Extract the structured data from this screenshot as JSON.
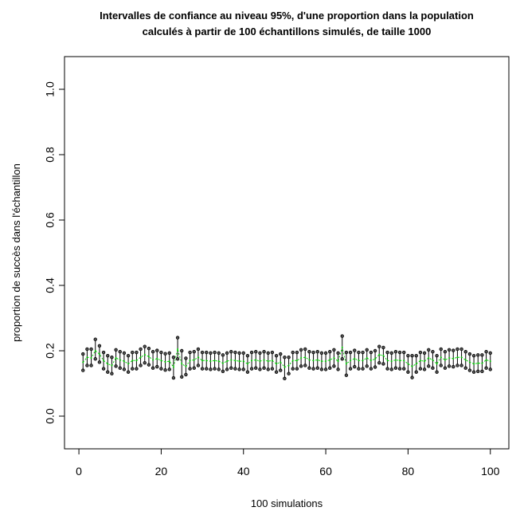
{
  "chart_data": {
    "type": "scatter",
    "title": "Intervalles de confiance  au niveau 95%, d'une proportion dans la population",
    "subtitle": "calculés à partir de 100 échantillons simulés, de taille 1000",
    "xlabel": "100 simulations",
    "ylabel": "proportion de succès dans l'échantillon",
    "xlim": [
      0,
      100
    ],
    "ylim": [
      -0.1,
      1.1
    ],
    "x_ticks": [
      "0",
      "20",
      "40",
      "60",
      "80",
      "100"
    ],
    "y_ticks": [
      "0.0",
      "0.2",
      "0.4",
      "0.6",
      "0.8",
      "1.0"
    ],
    "grid": false,
    "colors": {
      "interval": "#000000",
      "estimate": "#00cc00"
    },
    "x": [
      1,
      2,
      3,
      4,
      5,
      6,
      7,
      8,
      9,
      10,
      11,
      12,
      13,
      14,
      15,
      16,
      17,
      18,
      19,
      20,
      21,
      22,
      23,
      24,
      25,
      26,
      27,
      28,
      29,
      30,
      31,
      32,
      33,
      34,
      35,
      36,
      37,
      38,
      39,
      40,
      41,
      42,
      43,
      44,
      45,
      46,
      47,
      48,
      49,
      50,
      51,
      52,
      53,
      54,
      55,
      56,
      57,
      58,
      59,
      60,
      61,
      62,
      63,
      64,
      65,
      66,
      67,
      68,
      69,
      70,
      71,
      72,
      73,
      74,
      75,
      76,
      77,
      78,
      79,
      80,
      81,
      82,
      83,
      84,
      85,
      86,
      87,
      88,
      89,
      90,
      91,
      92,
      93,
      94,
      95,
      96,
      97,
      98,
      99,
      100
    ],
    "series": [
      {
        "name": "estimate",
        "values": [
          0.165,
          0.18,
          0.178,
          0.2,
          0.19,
          0.17,
          0.16,
          0.155,
          0.178,
          0.172,
          0.168,
          0.16,
          0.17,
          0.17,
          0.18,
          0.188,
          0.182,
          0.172,
          0.176,
          0.17,
          0.166,
          0.168,
          0.15,
          0.205,
          0.16,
          0.152,
          0.17,
          0.172,
          0.18,
          0.17,
          0.17,
          0.168,
          0.17,
          0.168,
          0.162,
          0.168,
          0.172,
          0.17,
          0.168,
          0.168,
          0.16,
          0.17,
          0.172,
          0.168,
          0.172,
          0.168,
          0.17,
          0.16,
          0.165,
          0.15,
          0.155,
          0.17,
          0.17,
          0.178,
          0.18,
          0.172,
          0.17,
          0.172,
          0.168,
          0.168,
          0.172,
          0.178,
          0.168,
          0.21,
          0.16,
          0.17,
          0.176,
          0.17,
          0.17,
          0.178,
          0.17,
          0.175,
          0.188,
          0.185,
          0.17,
          0.168,
          0.172,
          0.17,
          0.17,
          0.16,
          0.152,
          0.16,
          0.17,
          0.168,
          0.178,
          0.172,
          0.16,
          0.18,
          0.172,
          0.178,
          0.176,
          0.18,
          0.18,
          0.172,
          0.165,
          0.16,
          0.162,
          0.162,
          0.172,
          0.168
        ]
      },
      {
        "name": "lower",
        "values": [
          0.14,
          0.155,
          0.155,
          0.175,
          0.165,
          0.145,
          0.135,
          0.13,
          0.153,
          0.147,
          0.143,
          0.135,
          0.145,
          0.145,
          0.155,
          0.163,
          0.157,
          0.147,
          0.151,
          0.145,
          0.141,
          0.143,
          0.117,
          0.175,
          0.12,
          0.127,
          0.145,
          0.147,
          0.155,
          0.145,
          0.145,
          0.143,
          0.145,
          0.143,
          0.137,
          0.143,
          0.147,
          0.145,
          0.143,
          0.143,
          0.135,
          0.145,
          0.147,
          0.143,
          0.147,
          0.143,
          0.145,
          0.135,
          0.14,
          0.115,
          0.13,
          0.145,
          0.145,
          0.153,
          0.155,
          0.147,
          0.145,
          0.147,
          0.143,
          0.143,
          0.147,
          0.153,
          0.143,
          0.175,
          0.125,
          0.145,
          0.151,
          0.145,
          0.145,
          0.153,
          0.145,
          0.15,
          0.163,
          0.16,
          0.145,
          0.143,
          0.147,
          0.145,
          0.145,
          0.135,
          0.118,
          0.135,
          0.145,
          0.143,
          0.153,
          0.147,
          0.135,
          0.155,
          0.147,
          0.153,
          0.151,
          0.155,
          0.155,
          0.147,
          0.14,
          0.135,
          0.137,
          0.137,
          0.147,
          0.143
        ]
      },
      {
        "name": "upper",
        "values": [
          0.19,
          0.205,
          0.205,
          0.235,
          0.215,
          0.195,
          0.185,
          0.18,
          0.203,
          0.197,
          0.193,
          0.185,
          0.195,
          0.195,
          0.205,
          0.213,
          0.207,
          0.197,
          0.201,
          0.195,
          0.191,
          0.193,
          0.18,
          0.24,
          0.2,
          0.177,
          0.195,
          0.197,
          0.205,
          0.195,
          0.195,
          0.193,
          0.195,
          0.193,
          0.187,
          0.193,
          0.197,
          0.195,
          0.193,
          0.193,
          0.185,
          0.195,
          0.197,
          0.193,
          0.197,
          0.193,
          0.195,
          0.185,
          0.19,
          0.18,
          0.18,
          0.195,
          0.195,
          0.203,
          0.205,
          0.197,
          0.195,
          0.197,
          0.193,
          0.193,
          0.197,
          0.203,
          0.193,
          0.245,
          0.195,
          0.195,
          0.201,
          0.195,
          0.195,
          0.203,
          0.195,
          0.2,
          0.213,
          0.21,
          0.195,
          0.193,
          0.197,
          0.195,
          0.195,
          0.185,
          0.185,
          0.185,
          0.195,
          0.193,
          0.203,
          0.197,
          0.185,
          0.205,
          0.197,
          0.203,
          0.201,
          0.205,
          0.205,
          0.197,
          0.19,
          0.185,
          0.187,
          0.187,
          0.197,
          0.193
        ]
      }
    ]
  }
}
